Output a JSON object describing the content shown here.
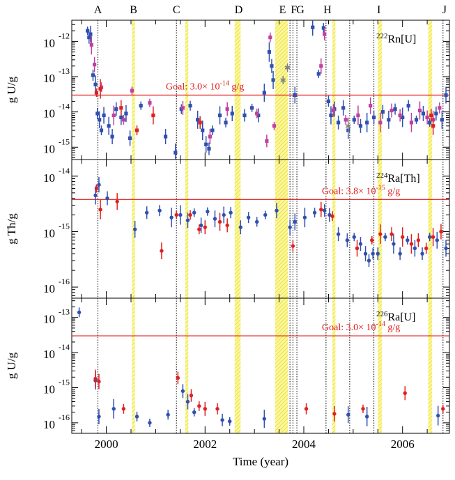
{
  "chart_data": {
    "type": "scatter",
    "xlabel": "Time (year)",
    "xlim": [
      1999.3,
      2006.95
    ],
    "x_ticks": [
      {
        "v": 2000,
        "label": "2000"
      },
      {
        "v": 2002,
        "label": "2002"
      },
      {
        "v": 2004,
        "label": "2004"
      },
      {
        "v": 2006,
        "label": "2006"
      }
    ],
    "event_markers": [
      {
        "label": "A",
        "x": 1999.83
      },
      {
        "label": "B",
        "x": 2000.55
      },
      {
        "label": "C",
        "x": 2001.42
      },
      {
        "label": "D",
        "x": 2002.68
      },
      {
        "label": "E",
        "x": 2003.57
      },
      {
        "label": "F",
        "x": 2003.8
      },
      {
        "label": "G",
        "x": 2003.93
      },
      {
        "label": "H",
        "x": 2004.48
      },
      {
        "label": "I",
        "x": 2005.52
      },
      {
        "label": "J",
        "x": 2006.85
      }
    ],
    "event_lines": [
      1999.83,
      2001.42,
      2003.72,
      2003.78,
      2003.86,
      2004.45,
      2004.93,
      2005.42,
      2006.82
    ],
    "bands": [
      [
        2000.52,
        2000.58
      ],
      [
        2001.6,
        2001.66
      ],
      [
        2002.6,
        2002.72
      ],
      [
        2003.42,
        2003.68
      ],
      [
        2004.58,
        2004.64
      ],
      [
        2005.5,
        2005.58
      ],
      [
        2006.52,
        2006.6
      ]
    ],
    "panels": [
      {
        "title_iso": "222",
        "title_main": "Rn[U]",
        "ylabel": "g U/g",
        "ylog_range": [
          -15.35,
          -11.4
        ],
        "y_ticks": [
          -12,
          -13,
          -14,
          -15
        ],
        "goal_y": 3e-14,
        "goal_text": "Goal: 3.0× 10",
        "goal_exp": "-14",
        "goal_unit": " g/g",
        "series": [
          {
            "color": "#3050b0",
            "shape": "square",
            "points": [
              [
                1999.62,
                2e-12
              ],
              [
                1999.65,
                1.3e-12
              ],
              [
                1999.68,
                1.6e-12
              ],
              [
                1999.73,
                1.1e-13
              ],
              [
                1999.78,
                6e-14
              ],
              [
                1999.82,
                9e-15
              ],
              [
                1999.86,
                6e-15
              ],
              [
                1999.9,
                3e-15
              ],
              [
                1999.95,
                8e-15
              ],
              [
                2000.05,
                4e-15
              ],
              [
                2000.12,
                2e-15
              ],
              [
                2000.2,
                1.2e-14
              ],
              [
                2000.3,
                7e-15
              ],
              [
                2000.4,
                9e-15
              ],
              [
                2000.48,
                1.8e-15
              ],
              [
                2000.7,
                1.5e-14
              ],
              [
                2001.2,
                2e-15
              ],
              [
                2001.4,
                7e-16
              ],
              [
                2001.52,
                1.2e-14
              ],
              [
                2001.7,
                1.5e-14
              ],
              [
                2001.85,
                6e-15
              ],
              [
                2001.95,
                3e-15
              ],
              [
                2002.02,
                1.2e-15
              ],
              [
                2002.08,
                9e-16
              ],
              [
                2002.15,
                3e-15
              ],
              [
                2002.3,
                8e-15
              ],
              [
                2002.42,
                5e-15
              ],
              [
                2002.55,
                9e-15
              ],
              [
                2002.8,
                8e-15
              ],
              [
                2002.95,
                1.3e-14
              ],
              [
                2003.08,
                8e-15
              ],
              [
                2003.2,
                3.5e-14
              ],
              [
                2003.3,
                5e-13
              ],
              [
                2003.35,
                2e-13
              ],
              [
                2003.38,
                8e-14
              ],
              [
                2003.82,
                3e-14
              ],
              [
                2004.18,
                2.5e-12
              ],
              [
                2004.3,
                1.2e-13
              ],
              [
                2004.4,
                2.4e-12
              ],
              [
                2004.5,
                2e-14
              ],
              [
                2004.55,
                8e-15
              ],
              [
                2004.62,
                1.2e-14
              ],
              [
                2004.7,
                5e-15
              ],
              [
                2004.8,
                1.3e-14
              ],
              [
                2004.9,
                3e-15
              ],
              [
                2005.02,
                6e-15
              ],
              [
                2005.15,
                4e-15
              ],
              [
                2005.28,
                5e-15
              ],
              [
                2005.42,
                7e-15
              ],
              [
                2005.6,
                1e-14
              ],
              [
                2005.72,
                6e-15
              ],
              [
                2005.85,
                1.2e-14
              ],
              [
                2006.0,
                7e-15
              ],
              [
                2006.12,
                1.5e-14
              ],
              [
                2006.28,
                6e-15
              ],
              [
                2006.42,
                9e-15
              ],
              [
                2006.55,
                5e-15
              ],
              [
                2006.68,
                9e-15
              ],
              [
                2006.8,
                6e-15
              ],
              [
                2006.88,
                3e-14
              ]
            ]
          },
          {
            "color": "#c040a0",
            "shape": "square",
            "points": [
              [
                1999.7,
                8e-13
              ],
              [
                1999.76,
                2.2e-13
              ],
              [
                1999.9,
                5e-14
              ],
              [
                2000.15,
                8e-15
              ],
              [
                2000.35,
                6e-15
              ],
              [
                2000.52,
                4e-14
              ],
              [
                2000.88,
                1.8e-14
              ],
              [
                2001.55,
                1.3e-14
              ],
              [
                2002.1,
                2e-15
              ],
              [
                2002.45,
                1.2e-14
              ],
              [
                2003.05,
                9e-15
              ],
              [
                2003.25,
                1.5e-15
              ],
              [
                2003.32,
                1.3e-12
              ],
              [
                2003.4,
                4e-15
              ],
              [
                2004.35,
                2e-13
              ],
              [
                2004.42,
                1.6e-12
              ],
              [
                2004.6,
                1.1e-14
              ],
              [
                2004.85,
                6e-15
              ],
              [
                2005.1,
                8e-15
              ],
              [
                2005.35,
                1.5e-14
              ],
              [
                2005.55,
                5e-15
              ],
              [
                2005.78,
                1.1e-14
              ],
              [
                2005.95,
                8e-15
              ],
              [
                2006.18,
                5e-15
              ],
              [
                2006.35,
                1.1e-14
              ],
              [
                2006.5,
                7e-15
              ],
              [
                2006.62,
                6e-15
              ],
              [
                2006.75,
                1.3e-14
              ]
            ]
          },
          {
            "color": "#e02020",
            "shape": "square",
            "points": [
              [
                1999.8,
                3.5e-14
              ],
              [
                1999.88,
                4.5e-14
              ],
              [
                2000.3,
                1.3e-14
              ],
              [
                2000.62,
                3e-15
              ],
              [
                2000.95,
                8e-15
              ],
              [
                2001.9,
                5e-15
              ],
              [
                2006.58,
                8e-15
              ],
              [
                2006.62,
                4e-15
              ]
            ]
          },
          {
            "color": "#808080",
            "shape": "star",
            "points": [
              [
                2003.58,
                8e-14
              ],
              [
                2003.67,
                1.8e-13
              ],
              [
                2004.9,
                4e-15
              ]
            ]
          }
        ]
      },
      {
        "title_iso": "224",
        "title_main": "Ra[Th]",
        "ylabel": "g Th/g",
        "ylog_range": [
          -16.2,
          -13.7
        ],
        "y_ticks": [
          -14,
          -15,
          -16
        ],
        "goal_y": 3.8e-15,
        "goal_text": "Goal: 3.8× 10",
        "goal_exp": "-15",
        "goal_unit": " g/g",
        "series": [
          {
            "color": "#3050b0",
            "shape": "circle",
            "points": [
              [
                1999.78,
                4.5e-15
              ],
              [
                1999.85,
                7e-15
              ],
              [
                2000.02,
                4e-15
              ],
              [
                2000.58,
                1.1e-15
              ],
              [
                2000.82,
                2.2e-15
              ],
              [
                2001.08,
                2.4e-15
              ],
              [
                2001.32,
                1.8e-15
              ],
              [
                2001.5,
                2e-15
              ],
              [
                2001.65,
                1.6e-15
              ],
              [
                2001.78,
                2.2e-15
              ],
              [
                2001.92,
                1.3e-15
              ],
              [
                2002.05,
                2.3e-15
              ],
              [
                2002.2,
                1.7e-15
              ],
              [
                2002.38,
                2e-15
              ],
              [
                2002.52,
                2.2e-15
              ],
              [
                2002.72,
                1.2e-15
              ],
              [
                2002.88,
                1.8e-15
              ],
              [
                2003.05,
                1.5e-15
              ],
              [
                2003.22,
                2e-15
              ],
              [
                2003.45,
                2.4e-15
              ],
              [
                2003.72,
                1.2e-15
              ],
              [
                2003.82,
                1.5e-15
              ],
              [
                2004.02,
                1.8e-15
              ],
              [
                2004.22,
                2.2e-15
              ],
              [
                2004.42,
                2.4e-15
              ],
              [
                2004.52,
                2e-15
              ],
              [
                2004.7,
                9e-16
              ],
              [
                2004.88,
                7e-16
              ],
              [
                2005.02,
                8e-16
              ],
              [
                2005.15,
                6e-16
              ],
              [
                2005.25,
                4e-16
              ],
              [
                2005.32,
                3e-16
              ],
              [
                2005.4,
                4e-16
              ],
              [
                2005.5,
                4e-16
              ],
              [
                2005.65,
                8e-16
              ],
              [
                2005.82,
                6e-16
              ],
              [
                2005.95,
                4e-16
              ],
              [
                2006.1,
                7e-16
              ],
              [
                2006.25,
                5e-16
              ],
              [
                2006.4,
                4e-16
              ],
              [
                2006.55,
                8e-16
              ],
              [
                2006.7,
                7e-16
              ],
              [
                2006.88,
                5e-16
              ]
            ]
          },
          {
            "color": "#e02020",
            "shape": "circle",
            "points": [
              [
                1999.8,
                6e-15
              ],
              [
                1999.88,
                2.5e-15
              ],
              [
                2000.22,
                3.5e-15
              ],
              [
                2001.12,
                4.5e-16
              ],
              [
                2001.42,
                2e-15
              ],
              [
                2001.7,
                2e-15
              ],
              [
                2001.88,
                1.1e-15
              ],
              [
                2002.0,
                1.2e-15
              ],
              [
                2002.3,
                1.5e-15
              ],
              [
                2002.45,
                1.3e-15
              ],
              [
                2003.78,
                5.5e-16
              ],
              [
                2004.35,
                2.5e-15
              ],
              [
                2004.58,
                1.9e-15
              ],
              [
                2005.08,
                5e-16
              ],
              [
                2005.38,
                7e-16
              ],
              [
                2005.55,
                9e-16
              ],
              [
                2005.78,
                9e-16
              ],
              [
                2006.0,
                8e-16
              ],
              [
                2006.18,
                6e-16
              ],
              [
                2006.32,
                7e-16
              ],
              [
                2006.48,
                5e-16
              ],
              [
                2006.62,
                8e-16
              ],
              [
                2006.78,
                1e-15
              ]
            ]
          }
        ]
      },
      {
        "title_iso": "226",
        "title_main": "Ra[U]",
        "ylabel": "g U/g",
        "ylog_range": [
          -16.3,
          -12.45
        ],
        "y_ticks": [
          -13,
          -14,
          -15,
          -16
        ],
        "goal_y": 3e-14,
        "goal_text": "Goal: 3.0× 10",
        "goal_exp": "-14",
        "goal_unit": " g/g",
        "series": [
          {
            "color": "#3050b0",
            "shape": "circle",
            "points": [
              [
                1999.45,
                1.4e-13
              ],
              [
                1999.78,
                1.6e-15
              ],
              [
                1999.85,
                1.5e-16
              ],
              [
                2000.15,
                2.5e-16
              ],
              [
                2000.62,
                1.5e-16
              ],
              [
                2000.88,
                1e-16
              ],
              [
                2001.25,
                1.7e-16
              ],
              [
                2001.55,
                8e-16
              ],
              [
                2001.65,
                4e-16
              ],
              [
                2001.78,
                2e-16
              ],
              [
                2002.35,
                1.2e-16
              ],
              [
                2002.5,
                1.1e-16
              ],
              [
                2003.2,
                1.3e-16
              ],
              [
                2004.9,
                1.7e-16
              ],
              [
                2005.28,
                1.5e-16
              ],
              [
                2006.72,
                1.6e-16
              ]
            ]
          },
          {
            "color": "#e02020",
            "shape": "circle",
            "points": [
              [
                1999.78,
                1.8e-15
              ],
              [
                1999.85,
                1.5e-15
              ],
              [
                2000.35,
                2.5e-16
              ],
              [
                2001.45,
                1.9e-15
              ],
              [
                2001.72,
                6e-16
              ],
              [
                2001.88,
                3e-16
              ],
              [
                2002.0,
                2.5e-16
              ],
              [
                2002.25,
                2.5e-16
              ],
              [
                2004.05,
                2.5e-16
              ],
              [
                2004.62,
                1.8e-16
              ],
              [
                2005.2,
                2.5e-16
              ],
              [
                2006.05,
                7e-16
              ],
              [
                2006.82,
                2.5e-16
              ]
            ]
          }
        ]
      }
    ]
  }
}
